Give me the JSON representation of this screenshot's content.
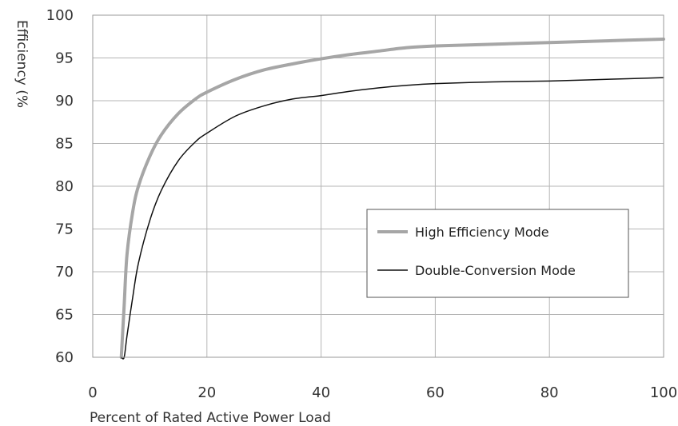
{
  "chart_data": {
    "type": "line",
    "title": "",
    "xlabel": "Percent of Rated Active Power Load",
    "ylabel": "Efficiency (%",
    "xlim": [
      0,
      100
    ],
    "ylim": [
      60,
      100
    ],
    "xticks": [
      0,
      20,
      40,
      60,
      80,
      100
    ],
    "yticks": [
      60,
      65,
      70,
      75,
      80,
      85,
      90,
      95,
      100
    ],
    "grid": true,
    "legend_position": "right",
    "series": [
      {
        "name": "High Efficiency Mode",
        "color": "#a6a6a6",
        "x": [
          5,
          5.5,
          6,
          7,
          8,
          10,
          12,
          15,
          18,
          20,
          25,
          30,
          35,
          40,
          45,
          50,
          55,
          60,
          70,
          80,
          90,
          100
        ],
        "y": [
          60,
          66,
          72,
          77,
          80,
          83.5,
          86,
          88.5,
          90.2,
          91,
          92.5,
          93.6,
          94.3,
          94.9,
          95.4,
          95.8,
          96.2,
          96.4,
          96.6,
          96.8,
          97,
          97.2
        ]
      },
      {
        "name": "Double-Conversion Mode",
        "color": "#111111",
        "x": [
          5,
          5.5,
          6,
          7,
          8,
          10,
          12,
          15,
          18,
          20,
          25,
          30,
          35,
          40,
          45,
          50,
          55,
          60,
          70,
          80,
          90,
          100
        ],
        "y": [
          60,
          60,
          62.5,
          67,
          71,
          76,
          79.5,
          83,
          85.2,
          86.2,
          88.2,
          89.4,
          90.2,
          90.6,
          91.1,
          91.5,
          91.8,
          92,
          92.2,
          92.3,
          92.5,
          92.7
        ]
      }
    ]
  }
}
